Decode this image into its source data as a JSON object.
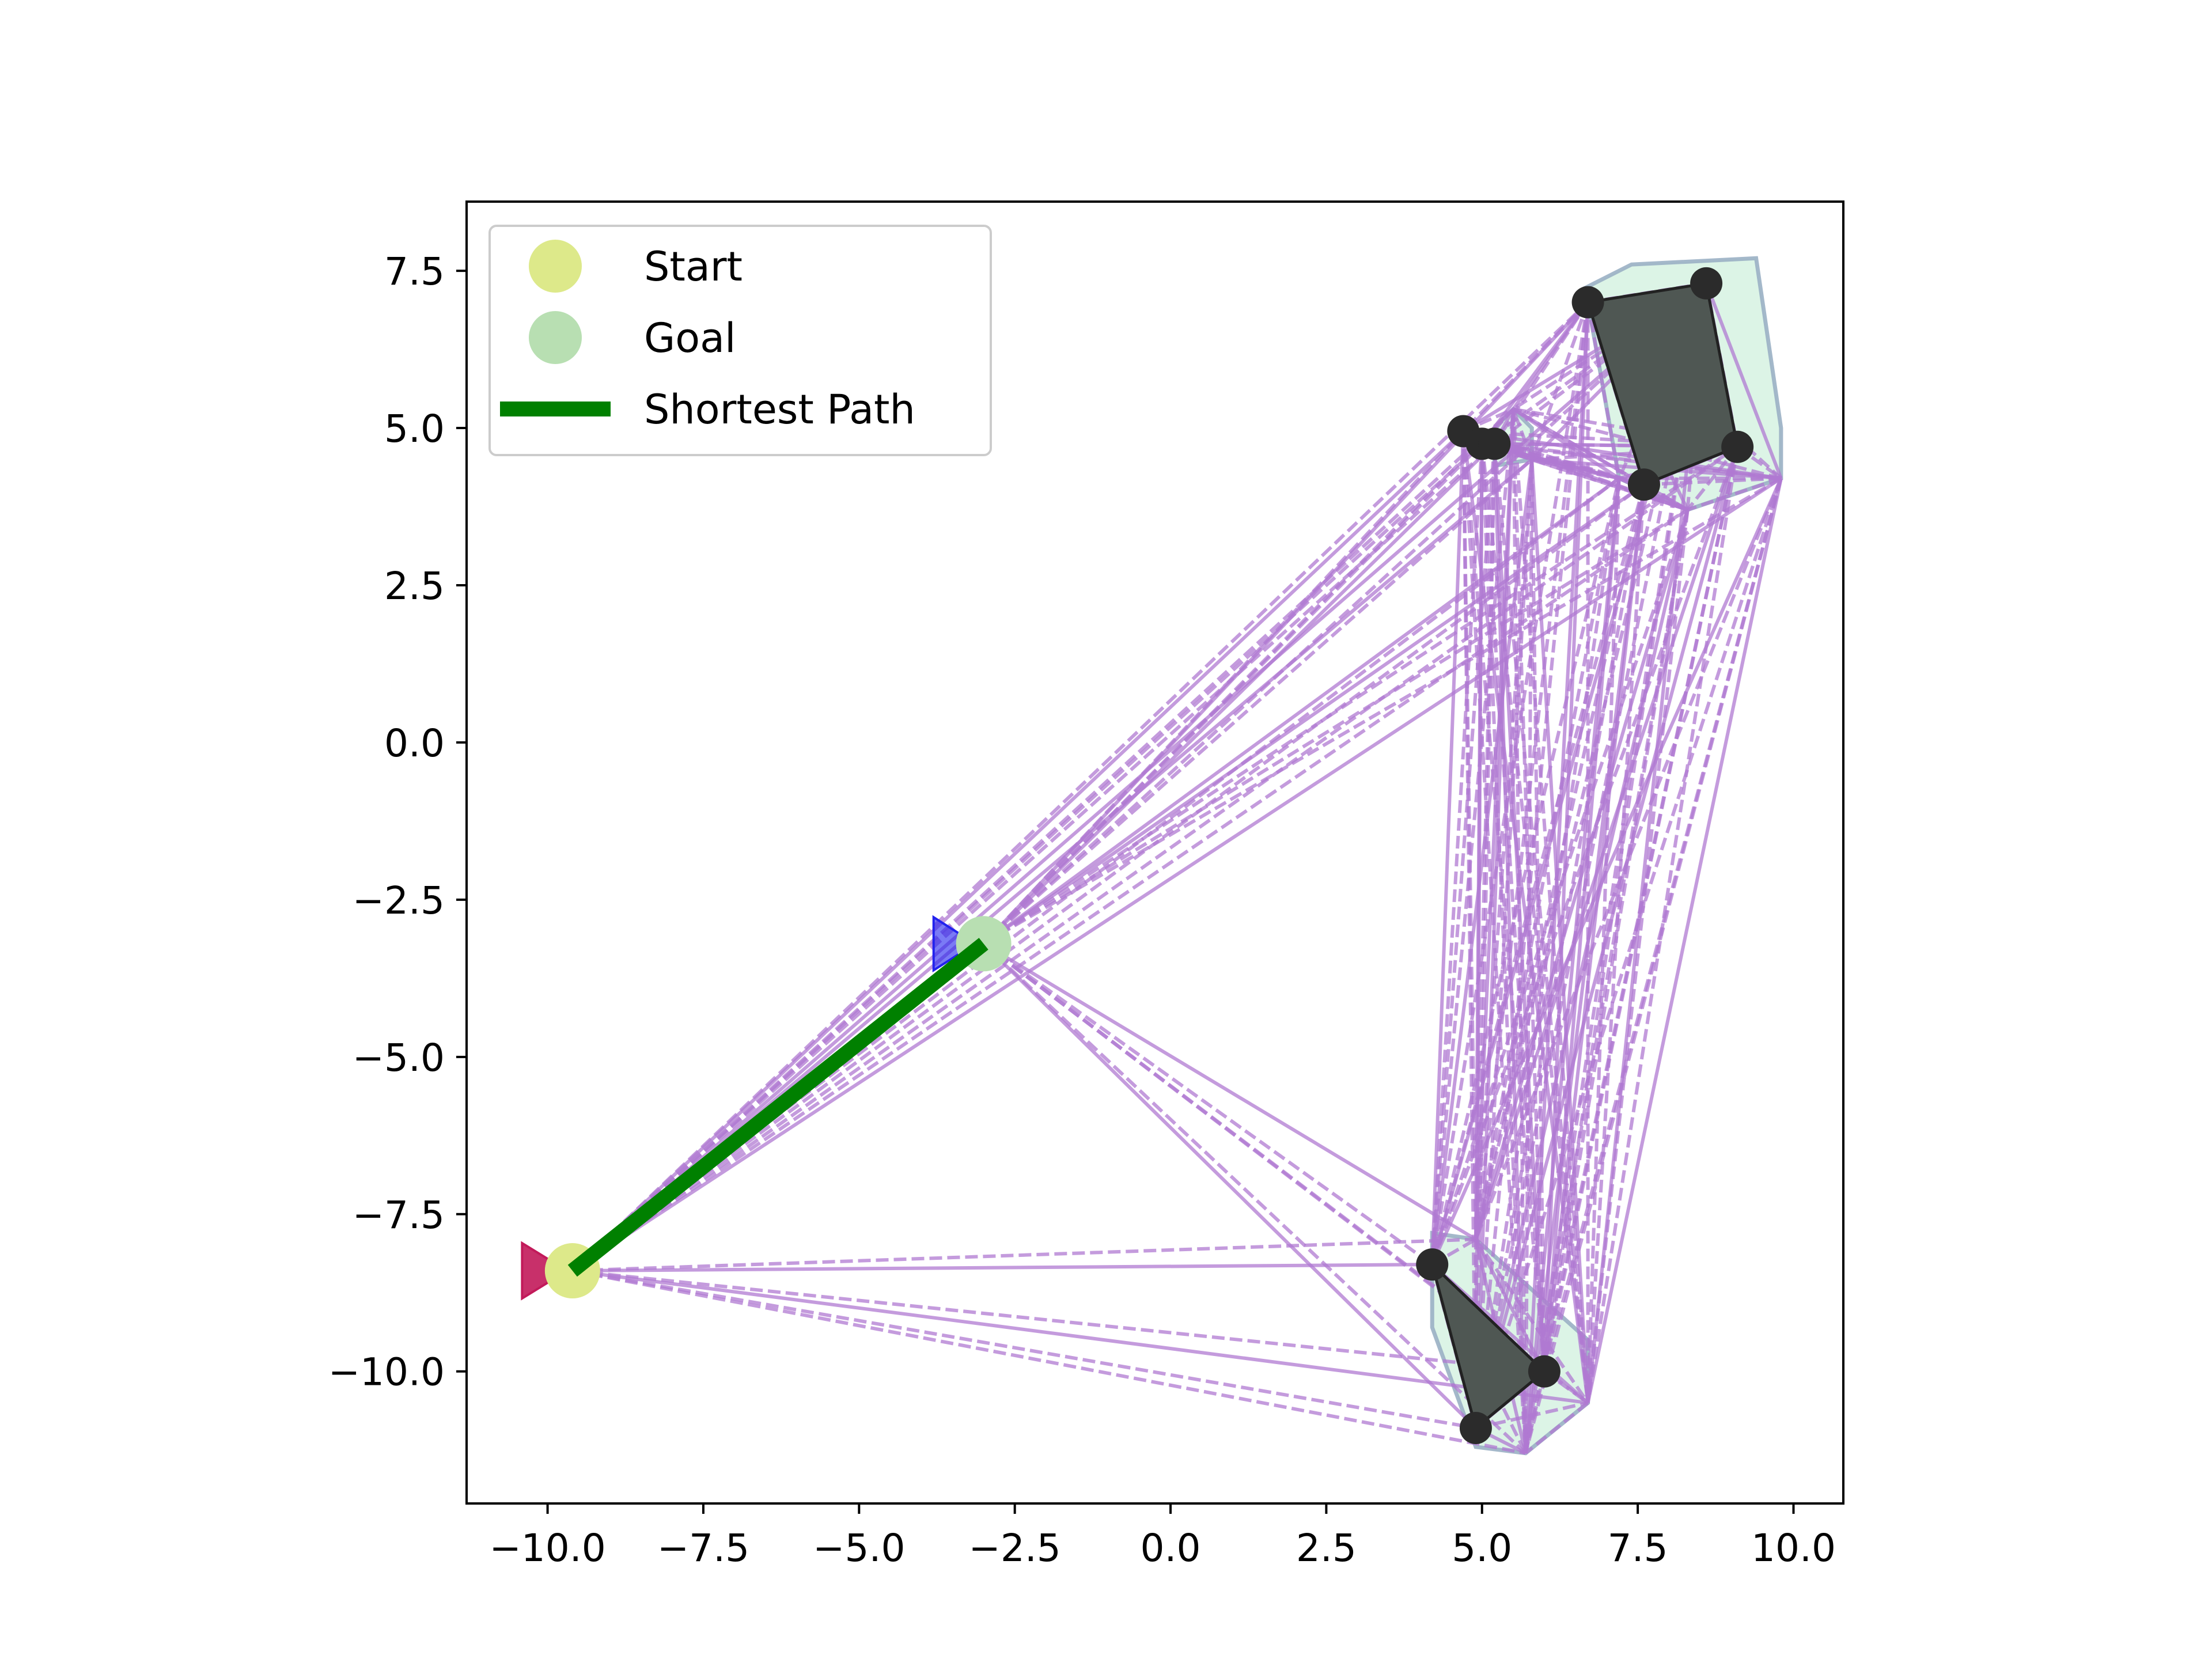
{
  "chart_data": {
    "type": "scatter",
    "title": "",
    "xlabel": "",
    "ylabel": "",
    "xlim": [
      -11.3,
      10.8
    ],
    "ylim": [
      -12.1,
      8.6
    ],
    "xticks": [
      -10.0,
      -7.5,
      -5.0,
      -2.5,
      0.0,
      2.5,
      5.0,
      7.5,
      10.0
    ],
    "yticks": [
      -10.0,
      -7.5,
      -5.0,
      -2.5,
      0.0,
      2.5,
      5.0,
      7.5
    ],
    "xtick_labels": [
      "−10.0",
      "−7.5",
      "−5.0",
      "−2.5",
      "0.0",
      "2.5",
      "5.0",
      "7.5",
      "10.0"
    ],
    "ytick_labels": [
      "−10.0",
      "−7.5",
      "−5.0",
      "−2.5",
      "0.0",
      "2.5",
      "5.0",
      "7.5"
    ],
    "grid": false,
    "legend_position": "upper-left",
    "legend": [
      {
        "label": "Start",
        "marker": "circle",
        "color": "#dde98a"
      },
      {
        "label": "Goal",
        "marker": "circle",
        "color": "#b8dfb2"
      },
      {
        "label": "Shortest Path",
        "marker": "line",
        "color": "#008000"
      }
    ],
    "colors": {
      "edge": "#b07ad2",
      "obstacle": "#4f5753",
      "inflated": "#dcf4e6",
      "inflated_edge": "#9ab0c4",
      "vertex": "#2b2b2b",
      "path": "#008000",
      "start": "#dde98a",
      "goal": "#b8dfb2",
      "start_pose": "#c21a5a",
      "goal_pose": "#2222ee"
    },
    "start": [
      -9.6,
      -8.4
    ],
    "goal": [
      -3.0,
      -3.2
    ],
    "start_heading_marker": [
      -10.15,
      -8.4
    ],
    "goal_heading_marker": [
      -3.6,
      -3.2
    ],
    "shortest_path": [
      [
        -9.6,
        -8.4
      ],
      [
        -3.0,
        -3.2
      ]
    ],
    "obstacles": [
      {
        "name": "upper-right",
        "vertices": [
          [
            6.7,
            7.0
          ],
          [
            8.6,
            7.3
          ],
          [
            9.1,
            4.7
          ],
          [
            7.6,
            4.1
          ]
        ]
      },
      {
        "name": "upper-middle",
        "vertices": [
          [
            4.7,
            4.95
          ],
          [
            5.0,
            4.75
          ],
          [
            5.2,
            4.75
          ]
        ]
      },
      {
        "name": "lower-right",
        "vertices": [
          [
            4.2,
            -8.3
          ],
          [
            6.0,
            -10.0
          ],
          [
            4.9,
            -10.9
          ]
        ]
      }
    ],
    "inflated_regions": [
      {
        "name": "upper-right",
        "vertices": [
          [
            6.6,
            7.2
          ],
          [
            7.4,
            7.6
          ],
          [
            9.4,
            7.7
          ],
          [
            9.8,
            5.0
          ],
          [
            9.8,
            4.2
          ],
          [
            8.3,
            3.7
          ],
          [
            7.2,
            4.2
          ],
          [
            6.7,
            7.0
          ]
        ]
      },
      {
        "name": "upper-middle",
        "vertices": [
          [
            5.2,
            5.0
          ],
          [
            5.5,
            5.3
          ],
          [
            5.8,
            5.0
          ],
          [
            5.8,
            4.5
          ],
          [
            5.2,
            4.4
          ]
        ]
      },
      {
        "name": "lower-right",
        "vertices": [
          [
            4.2,
            -7.8
          ],
          [
            4.9,
            -7.9
          ],
          [
            6.7,
            -9.5
          ],
          [
            6.7,
            -10.5
          ],
          [
            5.7,
            -11.3
          ],
          [
            4.9,
            -11.2
          ],
          [
            4.2,
            -9.3
          ]
        ]
      }
    ],
    "graph_nodes": [
      [
        -9.6,
        -8.4
      ],
      [
        -3.0,
        -3.2
      ],
      [
        6.7,
        7.0
      ],
      [
        8.6,
        7.3
      ],
      [
        9.1,
        4.7
      ],
      [
        7.6,
        4.1
      ],
      [
        4.7,
        4.95
      ],
      [
        5.0,
        4.75
      ],
      [
        5.2,
        4.75
      ],
      [
        4.2,
        -8.3
      ],
      [
        6.0,
        -10.0
      ],
      [
        4.9,
        -10.9
      ],
      [
        9.8,
        4.2
      ],
      [
        8.3,
        3.7
      ],
      [
        7.2,
        4.2
      ],
      [
        5.8,
        4.5
      ],
      [
        5.5,
        5.3
      ],
      [
        4.9,
        -7.9
      ],
      [
        6.7,
        -10.5
      ],
      [
        5.7,
        -11.3
      ]
    ]
  }
}
